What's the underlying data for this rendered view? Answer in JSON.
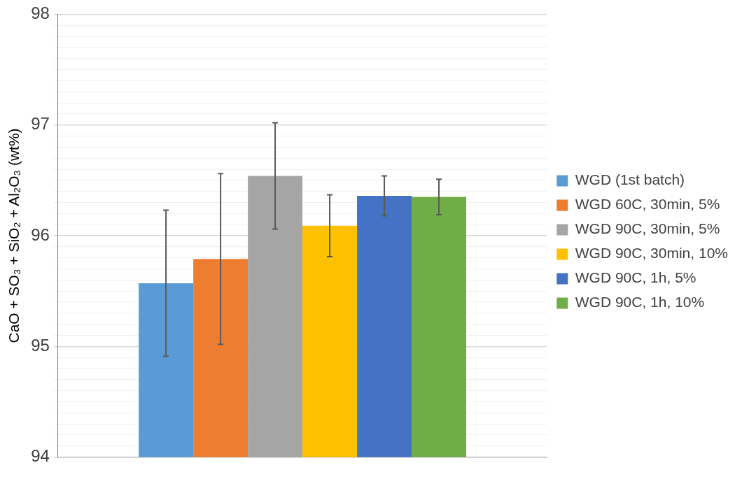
{
  "chart_data": {
    "type": "bar",
    "ylabel": "CaO + SO₃ + SiO₂ + Al₂O₃ (wt%)",
    "categories": [
      null
    ],
    "series": [
      {
        "name": "WGD (1st batch)",
        "color": "#5b9bd5",
        "values": [
          95.57
        ],
        "errors": [
          0.66
        ]
      },
      {
        "name": "WGD 60C, 30min, 5%",
        "color": "#ed7d31",
        "values": [
          95.79
        ],
        "errors": [
          0.77
        ]
      },
      {
        "name": "WGD 90C, 30min, 5%",
        "color": "#a5a5a5",
        "values": [
          96.54
        ],
        "errors": [
          0.48
        ]
      },
      {
        "name": "WGD 90C, 30min, 10%",
        "color": "#ffc000",
        "values": [
          96.09
        ],
        "errors": [
          0.28
        ]
      },
      {
        "name": "WGD 90C, 1h, 5%",
        "color": "#4472c4",
        "values": [
          96.36
        ],
        "errors": [
          0.18
        ]
      },
      {
        "name": "WGD 90C, 1h, 10%",
        "color": "#70ad47",
        "values": [
          96.35
        ],
        "errors": [
          0.16
        ]
      }
    ],
    "ylim": [
      94,
      98
    ],
    "yticks": [
      94,
      {
        "value": 94.1,
        "label": null
      },
      {
        "value": 94.2,
        "label": null
      },
      {
        "value": 94.3,
        "label": null
      },
      {
        "value": 94.4,
        "label": null
      },
      {
        "value": 94.5,
        "label": null
      },
      {
        "value": 94.6,
        "label": null
      },
      {
        "value": 94.7,
        "label": null
      },
      {
        "value": 94.8,
        "label": null
      },
      {
        "value": 94.9,
        "label": null
      },
      95,
      {
        "value": 95.1,
        "label": null
      },
      {
        "value": 95.2,
        "label": null
      },
      {
        "value": 95.3,
        "label": null
      },
      {
        "value": 95.4,
        "label": null
      },
      {
        "value": 95.5,
        "label": null
      },
      {
        "value": 95.6,
        "label": null
      },
      {
        "value": 95.7,
        "label": null
      },
      {
        "value": 95.8,
        "label": null
      },
      {
        "value": 95.9,
        "label": null
      },
      96,
      {
        "value": 96.1,
        "label": null
      },
      {
        "value": 96.2,
        "label": null
      },
      {
        "value": 96.3,
        "label": null
      },
      {
        "value": 96.4,
        "label": null
      },
      {
        "value": 96.5,
        "label": null
      },
      {
        "value": 96.6,
        "label": null
      },
      {
        "value": 96.7,
        "label": null
      },
      {
        "value": 96.8,
        "label": null
      },
      {
        "value": 96.9,
        "label": null
      },
      97,
      {
        "value": 97.1,
        "label": null
      },
      {
        "value": 97.2,
        "label": null
      },
      {
        "value": 97.3,
        "label": null
      },
      {
        "value": 97.4,
        "label": null
      },
      {
        "value": 97.5,
        "label": null
      },
      {
        "value": 97.6,
        "label": null
      },
      {
        "value": 97.7,
        "label": null
      },
      {
        "value": 97.8,
        "label": null
      },
      {
        "value": 97.9,
        "label": null
      },
      98
    ],
    "grid": "y",
    "legend": "right"
  }
}
